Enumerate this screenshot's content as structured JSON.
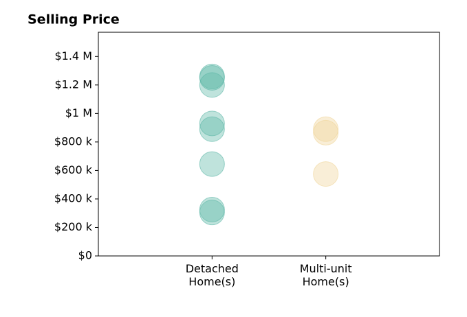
{
  "chart_data": {
    "type": "strip",
    "title": "Selling Price",
    "categories": [
      "Detached\nHome(s)",
      "Multi-unit\nHome(s)"
    ],
    "values": [
      [
        1260000,
        1250000,
        1200000,
        930000,
        890000,
        645000,
        325000,
        305000
      ],
      [
        890000,
        865000,
        575000
      ]
    ],
    "colors": [
      "#5fb8a8",
      "#f0d59a"
    ],
    "ylim": [
      0,
      1570000
    ],
    "yticks": [
      {
        "value": 0,
        "label": "$0"
      },
      {
        "value": 200000,
        "label": "$200 k"
      },
      {
        "value": 400000,
        "label": "$400 k"
      },
      {
        "value": 600000,
        "label": "$600 k"
      },
      {
        "value": 800000,
        "label": "$800 k"
      },
      {
        "value": 1000000,
        "label": "$1 M"
      },
      {
        "value": 1200000,
        "label": "$1.2 M"
      },
      {
        "value": 1400000,
        "label": "$1.4 M"
      }
    ]
  }
}
